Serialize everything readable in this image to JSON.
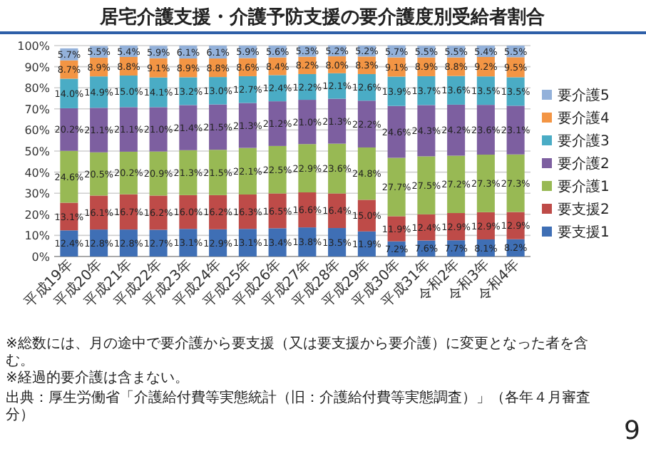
{
  "chart_data": {
    "type": "bar",
    "stacked": true,
    "title": "居宅介護支援・介護予防支援の要介護度別受給者割合",
    "categories": [
      "平成19年",
      "平成20年",
      "平成21年",
      "平成22年",
      "平成23年",
      "平成24年",
      "平成25年",
      "平成26年",
      "平成27年",
      "平成28年",
      "平成29年",
      "平成30年",
      "平成31年",
      "令和2年",
      "令和3年",
      "令和4年"
    ],
    "series": [
      {
        "name": "要支援1",
        "color": "#3f6fb5",
        "values": [
          12.4,
          12.8,
          12.8,
          12.7,
          13.1,
          12.9,
          13.1,
          13.4,
          13.8,
          13.5,
          11.9,
          7.2,
          7.6,
          7.7,
          8.1,
          8.2
        ],
        "value_labels": [
          "12.4%",
          "12.8%",
          "12.8%",
          "12.7%",
          "13.1%",
          "12.9%",
          "13.1%",
          "13.4%",
          "13.8%",
          "13.5%",
          "11.9%",
          "7.2%",
          "7.6%",
          "7.7%",
          "8.1%",
          "8.2%"
        ]
      },
      {
        "name": "要支援2",
        "color": "#be4b48",
        "values": [
          13.1,
          16.1,
          16.7,
          16.2,
          16.0,
          16.2,
          16.3,
          16.5,
          16.6,
          16.4,
          15.0,
          11.9,
          12.4,
          12.9,
          12.9,
          12.9
        ],
        "value_labels": [
          "13.1%",
          "16.1%",
          "16.7%",
          "16.2%",
          "16.0%",
          "16.2%",
          "16.3%",
          "16.5%",
          "16.6%",
          "16.4%",
          "15.0%",
          "11.9%",
          "12.4%",
          "12.9%",
          "12.9%",
          "12.9%"
        ]
      },
      {
        "name": "要介護1",
        "color": "#98b954",
        "values": [
          24.6,
          20.5,
          20.2,
          20.9,
          21.3,
          21.5,
          22.1,
          22.5,
          22.9,
          23.6,
          24.8,
          27.7,
          27.5,
          27.2,
          27.3,
          27.3
        ],
        "value_labels": [
          "24.6%",
          "20.5%",
          "20.2%",
          "20.9%",
          "21.3%",
          "21.5%",
          "22.1%",
          "22.5%",
          "22.9%",
          "23.6%",
          "24.8%",
          "27.7%",
          "27.5%",
          "27.2%",
          "27.3%",
          "27.3%"
        ]
      },
      {
        "name": "要介護2",
        "color": "#7d5fa0",
        "values": [
          20.2,
          21.1,
          21.1,
          21.0,
          21.4,
          21.5,
          21.3,
          21.2,
          21.0,
          21.3,
          22.2,
          24.6,
          24.3,
          24.2,
          23.6,
          23.1
        ],
        "value_labels": [
          "20.2%",
          "21.1%",
          "21.1%",
          "21.0%",
          "21.4%",
          "21.5%",
          "21.3%",
          "21.2%",
          "21.0%",
          "21.3%",
          "22.2%",
          "24.6%",
          "24.3%",
          "24.2%",
          "23.6%",
          "23.1%"
        ]
      },
      {
        "name": "要介護3",
        "color": "#4aacc5",
        "values": [
          14.0,
          14.9,
          15.0,
          14.1,
          13.2,
          13.0,
          12.7,
          12.4,
          12.2,
          12.1,
          12.6,
          13.9,
          13.7,
          13.6,
          13.5,
          13.5
        ],
        "value_labels": [
          "14.0%",
          "14.9%",
          "15.0%",
          "14.1%",
          "13.2%",
          "13.0%",
          "12.7%",
          "12.4%",
          "12.2%",
          "12.1%",
          "12.6%",
          "13.9%",
          "13.7%",
          "13.6%",
          "13.5%",
          "13.5%"
        ]
      },
      {
        "name": "要介護4",
        "color": "#f39544",
        "values": [
          8.7,
          8.9,
          8.8,
          9.1,
          8.9,
          8.8,
          8.6,
          8.4,
          8.2,
          8.0,
          8.3,
          9.1,
          8.9,
          8.8,
          9.2,
          9.5
        ],
        "value_labels": [
          "8.7%",
          "8.9%",
          "8.8%",
          "9.1%",
          "8.9%",
          "8.8%",
          "8.6%",
          "8.4%",
          "8.2%",
          "8.0%",
          "8.3%",
          "9.1%",
          "8.9%",
          "8.8%",
          "9.2%",
          "9.5%"
        ]
      },
      {
        "name": "要介護5",
        "color": "#93b1da",
        "values": [
          5.7,
          5.5,
          5.4,
          5.9,
          6.1,
          6.1,
          5.9,
          5.6,
          5.3,
          5.2,
          5.2,
          5.7,
          5.5,
          5.5,
          5.4,
          5.5
        ],
        "value_labels": [
          "5.7%",
          "5.5%",
          "5.4%",
          "5.9%",
          "6.1%",
          "6.1%",
          "5.9%",
          "5.6%",
          "5.3%",
          "5.2%",
          "5.2%",
          "5.7%",
          "5.5%",
          "5.5%",
          "5.4%",
          "5.5%"
        ]
      }
    ],
    "ylim": [
      0,
      100
    ],
    "yticks": [
      {
        "value": 0,
        "label": "0%"
      },
      {
        "value": 10,
        "label": "10%"
      },
      {
        "value": 20,
        "label": "20%"
      },
      {
        "value": 30,
        "label": "30%"
      },
      {
        "value": 40,
        "label": "40%"
      },
      {
        "value": 50,
        "label": "50%"
      },
      {
        "value": 60,
        "label": "60%"
      },
      {
        "value": 70,
        "label": "70%"
      },
      {
        "value": 80,
        "label": "80%"
      },
      {
        "value": 90,
        "label": "90%"
      },
      {
        "value": 100,
        "label": "100%"
      }
    ],
    "grid": "y",
    "legend": "right",
    "annotations": [
      "※総数には、月の途中で要介護から要支援（又は要支援から要介護）に変更となった者を含む。",
      "※経過的要介護は含まない。",
      "出典：厚生労働省「介護給付費等実態統計（旧：介護給付費等実態調査）」（各年４月審査分）",
      "9"
    ]
  }
}
